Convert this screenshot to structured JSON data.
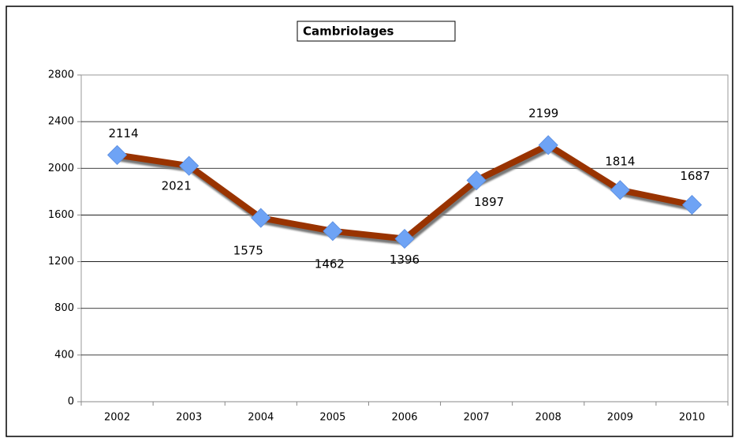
{
  "chart_data": {
    "type": "line",
    "title": "Cambriolages",
    "categories": [
      "2002",
      "2003",
      "2004",
      "2005",
      "2006",
      "2007",
      "2008",
      "2009",
      "2010"
    ],
    "series": [
      {
        "name": "Cambriolages",
        "color": "#993300",
        "marker_color": "#6ea3f5",
        "values": [
          2114,
          2021,
          1575,
          1462,
          1396,
          1897,
          2199,
          1814,
          1687
        ]
      }
    ],
    "ylim": [
      0,
      2800
    ],
    "yticks": [
      0,
      400,
      800,
      1200,
      1600,
      2000,
      2400,
      2800
    ],
    "grid": true
  }
}
